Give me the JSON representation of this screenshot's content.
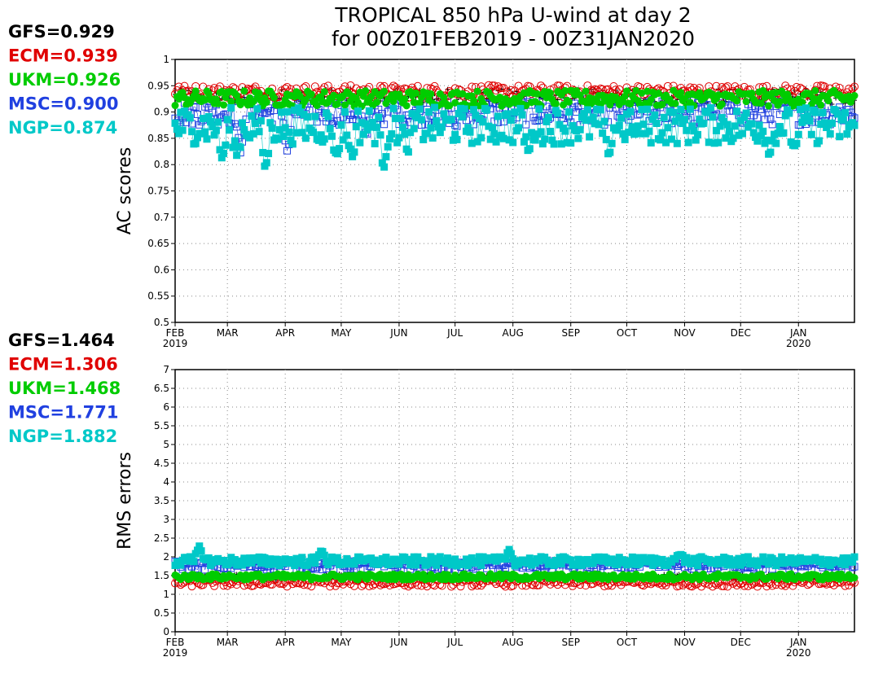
{
  "title_line1": "TROPICAL 850 hPa U-wind at day 2",
  "title_line2": "for 00Z01FEB2019 - 00Z31JAN2020",
  "colors": {
    "GFS": "#000000",
    "ECM": "#e00000",
    "UKM": "#00cc00",
    "MSC": "#2040e0",
    "NGP": "#00c8c8"
  },
  "chart_data": [
    {
      "type": "scatter",
      "panel": "top",
      "ylabel": "AC scores",
      "ylim": [
        0.5,
        1
      ],
      "yticks": [
        "0.5",
        "0.55",
        "0.6",
        "0.65",
        "0.7",
        "0.75",
        "0.8",
        "0.85",
        "0.9",
        "0.95",
        "1"
      ],
      "xlabels": [
        {
          "month": "FEB",
          "year": "2019"
        },
        {
          "month": "MAR",
          "year": ""
        },
        {
          "month": "APR",
          "year": ""
        },
        {
          "month": "MAY",
          "year": ""
        },
        {
          "month": "JUN",
          "year": ""
        },
        {
          "month": "JUL",
          "year": ""
        },
        {
          "month": "AUG",
          "year": ""
        },
        {
          "month": "SEP",
          "year": ""
        },
        {
          "month": "OCT",
          "year": ""
        },
        {
          "month": "NOV",
          "year": ""
        },
        {
          "month": "DEC",
          "year": ""
        },
        {
          "month": "JAN",
          "year": "2020"
        }
      ],
      "grid": true,
      "stats": [
        {
          "model": "GFS",
          "label": "GFS=0.929",
          "mean": 0.929
        },
        {
          "model": "ECM",
          "label": "ECM=0.939",
          "mean": 0.939
        },
        {
          "model": "UKM",
          "label": "UKM=0.926",
          "mean": 0.926
        },
        {
          "model": "MSC",
          "label": "MSC=0.900",
          "mean": 0.9
        },
        {
          "model": "NGP",
          "label": "NGP=0.874",
          "mean": 0.874
        }
      ],
      "series": [
        {
          "name": "GFS",
          "marker": "plus",
          "mean": 0.929,
          "spread": 0.015,
          "dips": []
        },
        {
          "name": "ECM",
          "marker": "open-circle",
          "mean": 0.939,
          "spread": 0.012,
          "dips": []
        },
        {
          "name": "UKM",
          "marker": "filled-circle",
          "mean": 0.926,
          "spread": 0.015,
          "dips": []
        },
        {
          "name": "MSC",
          "marker": "open-square",
          "mean": 0.9,
          "spread": 0.025,
          "dips": [
            [
              80,
              0.82
            ],
            [
              138,
              0.82
            ],
            [
              235,
              0.85
            ],
            [
              345,
              0.87
            ]
          ]
        },
        {
          "name": "NGP",
          "marker": "filled-square",
          "mean": 0.874,
          "spread": 0.035,
          "dips": [
            [
              58,
              0.805
            ],
            [
              76,
              0.815
            ],
            [
              111,
              0.785
            ],
            [
              198,
              0.81
            ],
            [
              217,
              0.81
            ],
            [
              256,
              0.79
            ],
            [
              285,
              0.82
            ],
            [
              434,
              0.82
            ],
            [
              532,
              0.815
            ],
            [
              565,
              0.86
            ],
            [
              730,
              0.815
            ],
            [
              760,
              0.83
            ]
          ]
        }
      ]
    },
    {
      "type": "scatter",
      "panel": "bottom",
      "ylabel": "RMS errors",
      "ylim": [
        0,
        7
      ],
      "yticks": [
        "0",
        "0.5",
        "1",
        "1.5",
        "2",
        "2.5",
        "3",
        "3.5",
        "4",
        "4.5",
        "5",
        "5.5",
        "6",
        "6.5",
        "7"
      ],
      "xlabels": [
        {
          "month": "FEB",
          "year": "2019"
        },
        {
          "month": "MAR",
          "year": ""
        },
        {
          "month": "APR",
          "year": ""
        },
        {
          "month": "MAY",
          "year": ""
        },
        {
          "month": "JUN",
          "year": ""
        },
        {
          "month": "JUL",
          "year": ""
        },
        {
          "month": "AUG",
          "year": ""
        },
        {
          "month": "SEP",
          "year": ""
        },
        {
          "month": "OCT",
          "year": ""
        },
        {
          "month": "NOV",
          "year": ""
        },
        {
          "month": "DEC",
          "year": ""
        },
        {
          "month": "JAN",
          "year": "2020"
        }
      ],
      "grid": true,
      "stats": [
        {
          "model": "GFS",
          "label": "GFS=1.464",
          "mean": 1.464
        },
        {
          "model": "ECM",
          "label": "ECM=1.306",
          "mean": 1.306
        },
        {
          "model": "UKM",
          "label": "UKM=1.468",
          "mean": 1.468
        },
        {
          "model": "MSC",
          "label": "MSC=1.771",
          "mean": 1.771
        },
        {
          "model": "NGP",
          "label": "NGP=1.882",
          "mean": 1.882
        }
      ],
      "series": [
        {
          "name": "GFS",
          "marker": "plus",
          "mean": 1.464,
          "spread": 0.08,
          "dips": []
        },
        {
          "name": "ECM",
          "marker": "open-circle",
          "mean": 1.306,
          "spread": 0.1,
          "dips": []
        },
        {
          "name": "UKM",
          "marker": "filled-circle",
          "mean": 1.468,
          "spread": 0.08,
          "dips": []
        },
        {
          "name": "MSC",
          "marker": "open-square",
          "mean": 1.771,
          "spread": 0.12,
          "dips": []
        },
        {
          "name": "NGP",
          "marker": "filled-square",
          "mean": 1.882,
          "spread": 0.12,
          "dips": [
            [
              30,
              2.3
            ],
            [
              180,
              2.2
            ],
            [
              410,
              2.2
            ],
            [
              620,
              2.1
            ]
          ]
        }
      ]
    }
  ]
}
